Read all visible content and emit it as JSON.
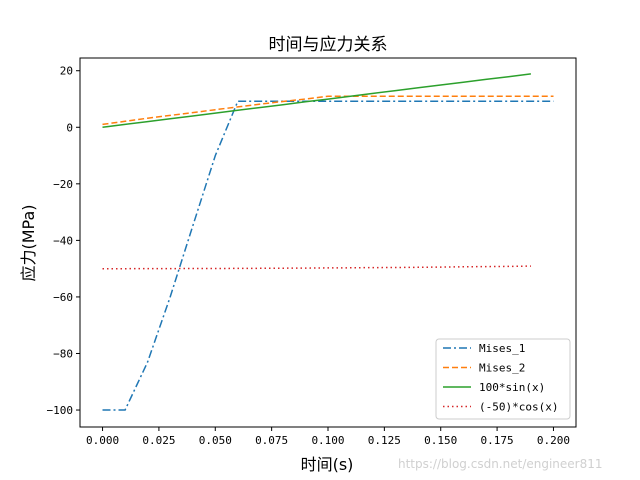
{
  "chart_data": {
    "type": "line",
    "title": "时间与应力关系",
    "xlabel": "时间(s)",
    "ylabel": "应力(MPa)",
    "xlim": [
      -0.01,
      0.21
    ],
    "ylim": [
      -106,
      24.5
    ],
    "x_ticks": [
      0.0,
      0.025,
      0.05,
      0.075,
      0.1,
      0.125,
      0.15,
      0.175,
      0.2
    ],
    "x_tick_labels": [
      "0.000",
      "0.025",
      "0.050",
      "0.075",
      "0.100",
      "0.125",
      "0.150",
      "0.175",
      "0.200"
    ],
    "y_ticks": [
      20,
      0,
      -20,
      -40,
      -60,
      -80,
      -100
    ],
    "y_tick_labels": [
      "20",
      "0",
      "−20",
      "−40",
      "−60",
      "−80",
      "−100"
    ],
    "grid": false,
    "legend_position": "bottom-right",
    "series": [
      {
        "name": "Mises_1",
        "color": "#1f77b4",
        "style": "dashdot",
        "x": [
          0.0,
          0.01,
          0.02,
          0.03,
          0.04,
          0.05,
          0.06,
          0.07,
          0.08,
          0.09,
          0.1,
          0.11,
          0.12,
          0.13,
          0.14,
          0.15,
          0.16,
          0.17,
          0.18,
          0.19,
          0.2
        ],
        "y": [
          -100,
          -100,
          -83,
          -60,
          -35,
          -10,
          9.2,
          9.2,
          9.2,
          9.2,
          9.2,
          9.2,
          9.2,
          9.2,
          9.2,
          9.2,
          9.2,
          9.2,
          9.2,
          9.2,
          9.2
        ]
      },
      {
        "name": "Mises_2",
        "color": "#ff7f0e",
        "style": "dashed",
        "x": [
          0.0,
          0.01,
          0.02,
          0.03,
          0.04,
          0.05,
          0.06,
          0.07,
          0.08,
          0.09,
          0.1,
          0.11,
          0.12,
          0.13,
          0.14,
          0.15,
          0.16,
          0.17,
          0.18,
          0.19,
          0.2
        ],
        "y": [
          1,
          2.1,
          3.2,
          4.2,
          5.2,
          6.2,
          7.2,
          8.2,
          9.1,
          10,
          11,
          11,
          11,
          11,
          11,
          11,
          11,
          11,
          11,
          11,
          11
        ]
      },
      {
        "name": "100*sin(x)",
        "color": "#2ca02c",
        "style": "solid",
        "x": [
          0.0,
          0.01,
          0.02,
          0.03,
          0.04,
          0.05,
          0.06,
          0.07,
          0.08,
          0.09,
          0.1,
          0.11,
          0.12,
          0.13,
          0.14,
          0.15,
          0.16,
          0.17,
          0.18,
          0.19
        ],
        "y": [
          0,
          1.0,
          2.0,
          3.0,
          4.0,
          5.0,
          6.0,
          7.0,
          8.0,
          9.0,
          9.98,
          10.98,
          11.97,
          12.96,
          13.95,
          14.94,
          15.93,
          16.92,
          17.9,
          18.89
        ]
      },
      {
        "name": "(-50)*cos(x)",
        "color": "#d62728",
        "style": "dotted",
        "x": [
          0.0,
          0.01,
          0.02,
          0.03,
          0.04,
          0.05,
          0.06,
          0.07,
          0.08,
          0.09,
          0.1,
          0.11,
          0.12,
          0.13,
          0.14,
          0.15,
          0.16,
          0.17,
          0.18,
          0.19
        ],
        "y": [
          -50,
          -50,
          -49.99,
          -49.98,
          -49.96,
          -49.94,
          -49.91,
          -49.88,
          -49.84,
          -49.8,
          -49.75,
          -49.7,
          -49.64,
          -49.58,
          -49.51,
          -49.44,
          -49.36,
          -49.28,
          -49.19,
          -49.1
        ]
      }
    ]
  },
  "watermark": "https://blog.csdn.net/engineer811"
}
